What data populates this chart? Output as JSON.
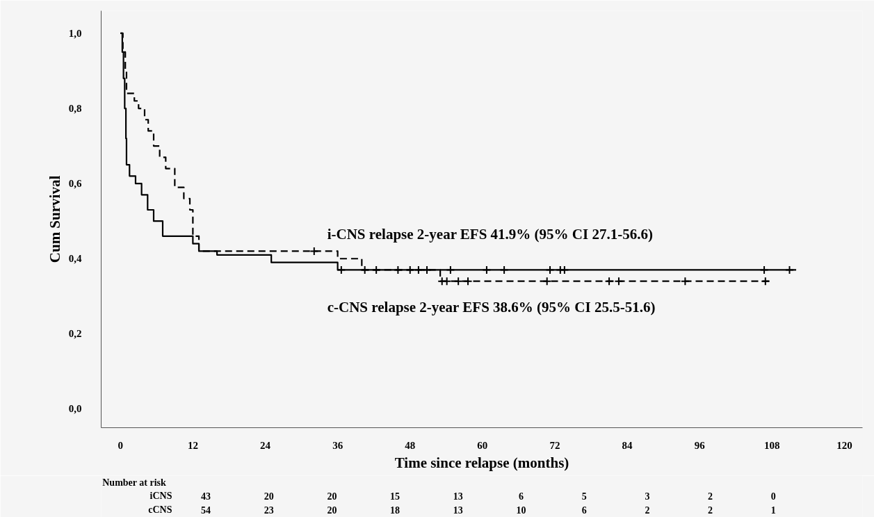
{
  "chart_data": {
    "type": "step",
    "xlabel": "Time since relapse (months)",
    "ylabel": "Cum Survival",
    "xlim": [
      -3.2,
      123
    ],
    "ylim": [
      -0.05,
      1.06
    ],
    "xticks": [
      0,
      12,
      24,
      36,
      48,
      60,
      72,
      84,
      96,
      108,
      120
    ],
    "yticks": [
      {
        "value": 0,
        "label": "0,0"
      },
      {
        "value": 0.2,
        "label": "0,2"
      },
      {
        "value": 0.4,
        "label": "0,4"
      },
      {
        "value": 0.6,
        "label": "0,6"
      },
      {
        "value": 0.8,
        "label": "0,8"
      },
      {
        "value": 1,
        "label": "1,0"
      }
    ],
    "grid": false,
    "series": [
      {
        "color": "#000000",
        "line_style": "solid",
        "x": [
          0,
          0.3,
          0.5,
          0.7,
          0.9,
          1.0,
          1.5,
          2.5,
          3.5,
          4.5,
          5.5,
          7,
          11,
          12,
          13,
          16,
          25,
          36,
          112
        ],
        "values": [
          1.0,
          0.95,
          0.88,
          0.8,
          0.72,
          0.65,
          0.62,
          0.6,
          0.57,
          0.53,
          0.5,
          0.46,
          0.46,
          0.44,
          0.42,
          0.41,
          0.39,
          0.37,
          0.37
        ]
      },
      {
        "color": "#000000",
        "line_style": "dashed",
        "x": [
          0,
          0.4,
          0.8,
          1.0,
          2.3,
          3,
          4,
          4.6,
          5.5,
          6.5,
          7.5,
          9,
          10.5,
          11.5,
          12,
          13,
          36,
          40,
          53,
          108
        ],
        "values": [
          1.0,
          0.95,
          0.9,
          0.84,
          0.82,
          0.8,
          0.77,
          0.74,
          0.7,
          0.67,
          0.64,
          0.59,
          0.56,
          0.53,
          0.46,
          0.42,
          0.4,
          0.37,
          0.34,
          0.34
        ]
      },
      {
        "type": "scatter",
        "marker": "cross",
        "color": "#000000",
        "x": [
          36.6,
          40.5,
          42.4,
          46,
          48,
          49.4,
          50.8,
          54.7,
          60.7,
          63.6,
          71.2,
          72.9,
          73.6,
          106.7,
          110.9
        ],
        "values": [
          0.37,
          0.37,
          0.37,
          0.37,
          0.37,
          0.37,
          0.37,
          0.37,
          0.37,
          0.37,
          0.37,
          0.37,
          0.37,
          0.37,
          0.37
        ]
      },
      {
        "type": "scatter",
        "marker": "cross",
        "color": "#000000",
        "x": [
          32.1,
          53.3,
          54.1,
          56,
          57.6,
          70.7,
          81,
          82.6,
          93.6,
          106.9
        ],
        "values": [
          0.42,
          0.34,
          0.34,
          0.34,
          0.34,
          0.34,
          0.34,
          0.34,
          0.34,
          0.34
        ]
      }
    ],
    "annotations": [
      "i-CNS relapse 2-year EFS 41.9% (95% CI 27.1-56.6)",
      "c-CNS relapse 2-year EFS 38.6% (95% CI 25.5-51.6)",
      "Number at risk",
      "iCNS 43 20 20 15 13 6 5 3 2 0",
      "cCNS 54 23 20 18 13 10 6 2 2 1"
    ]
  }
}
